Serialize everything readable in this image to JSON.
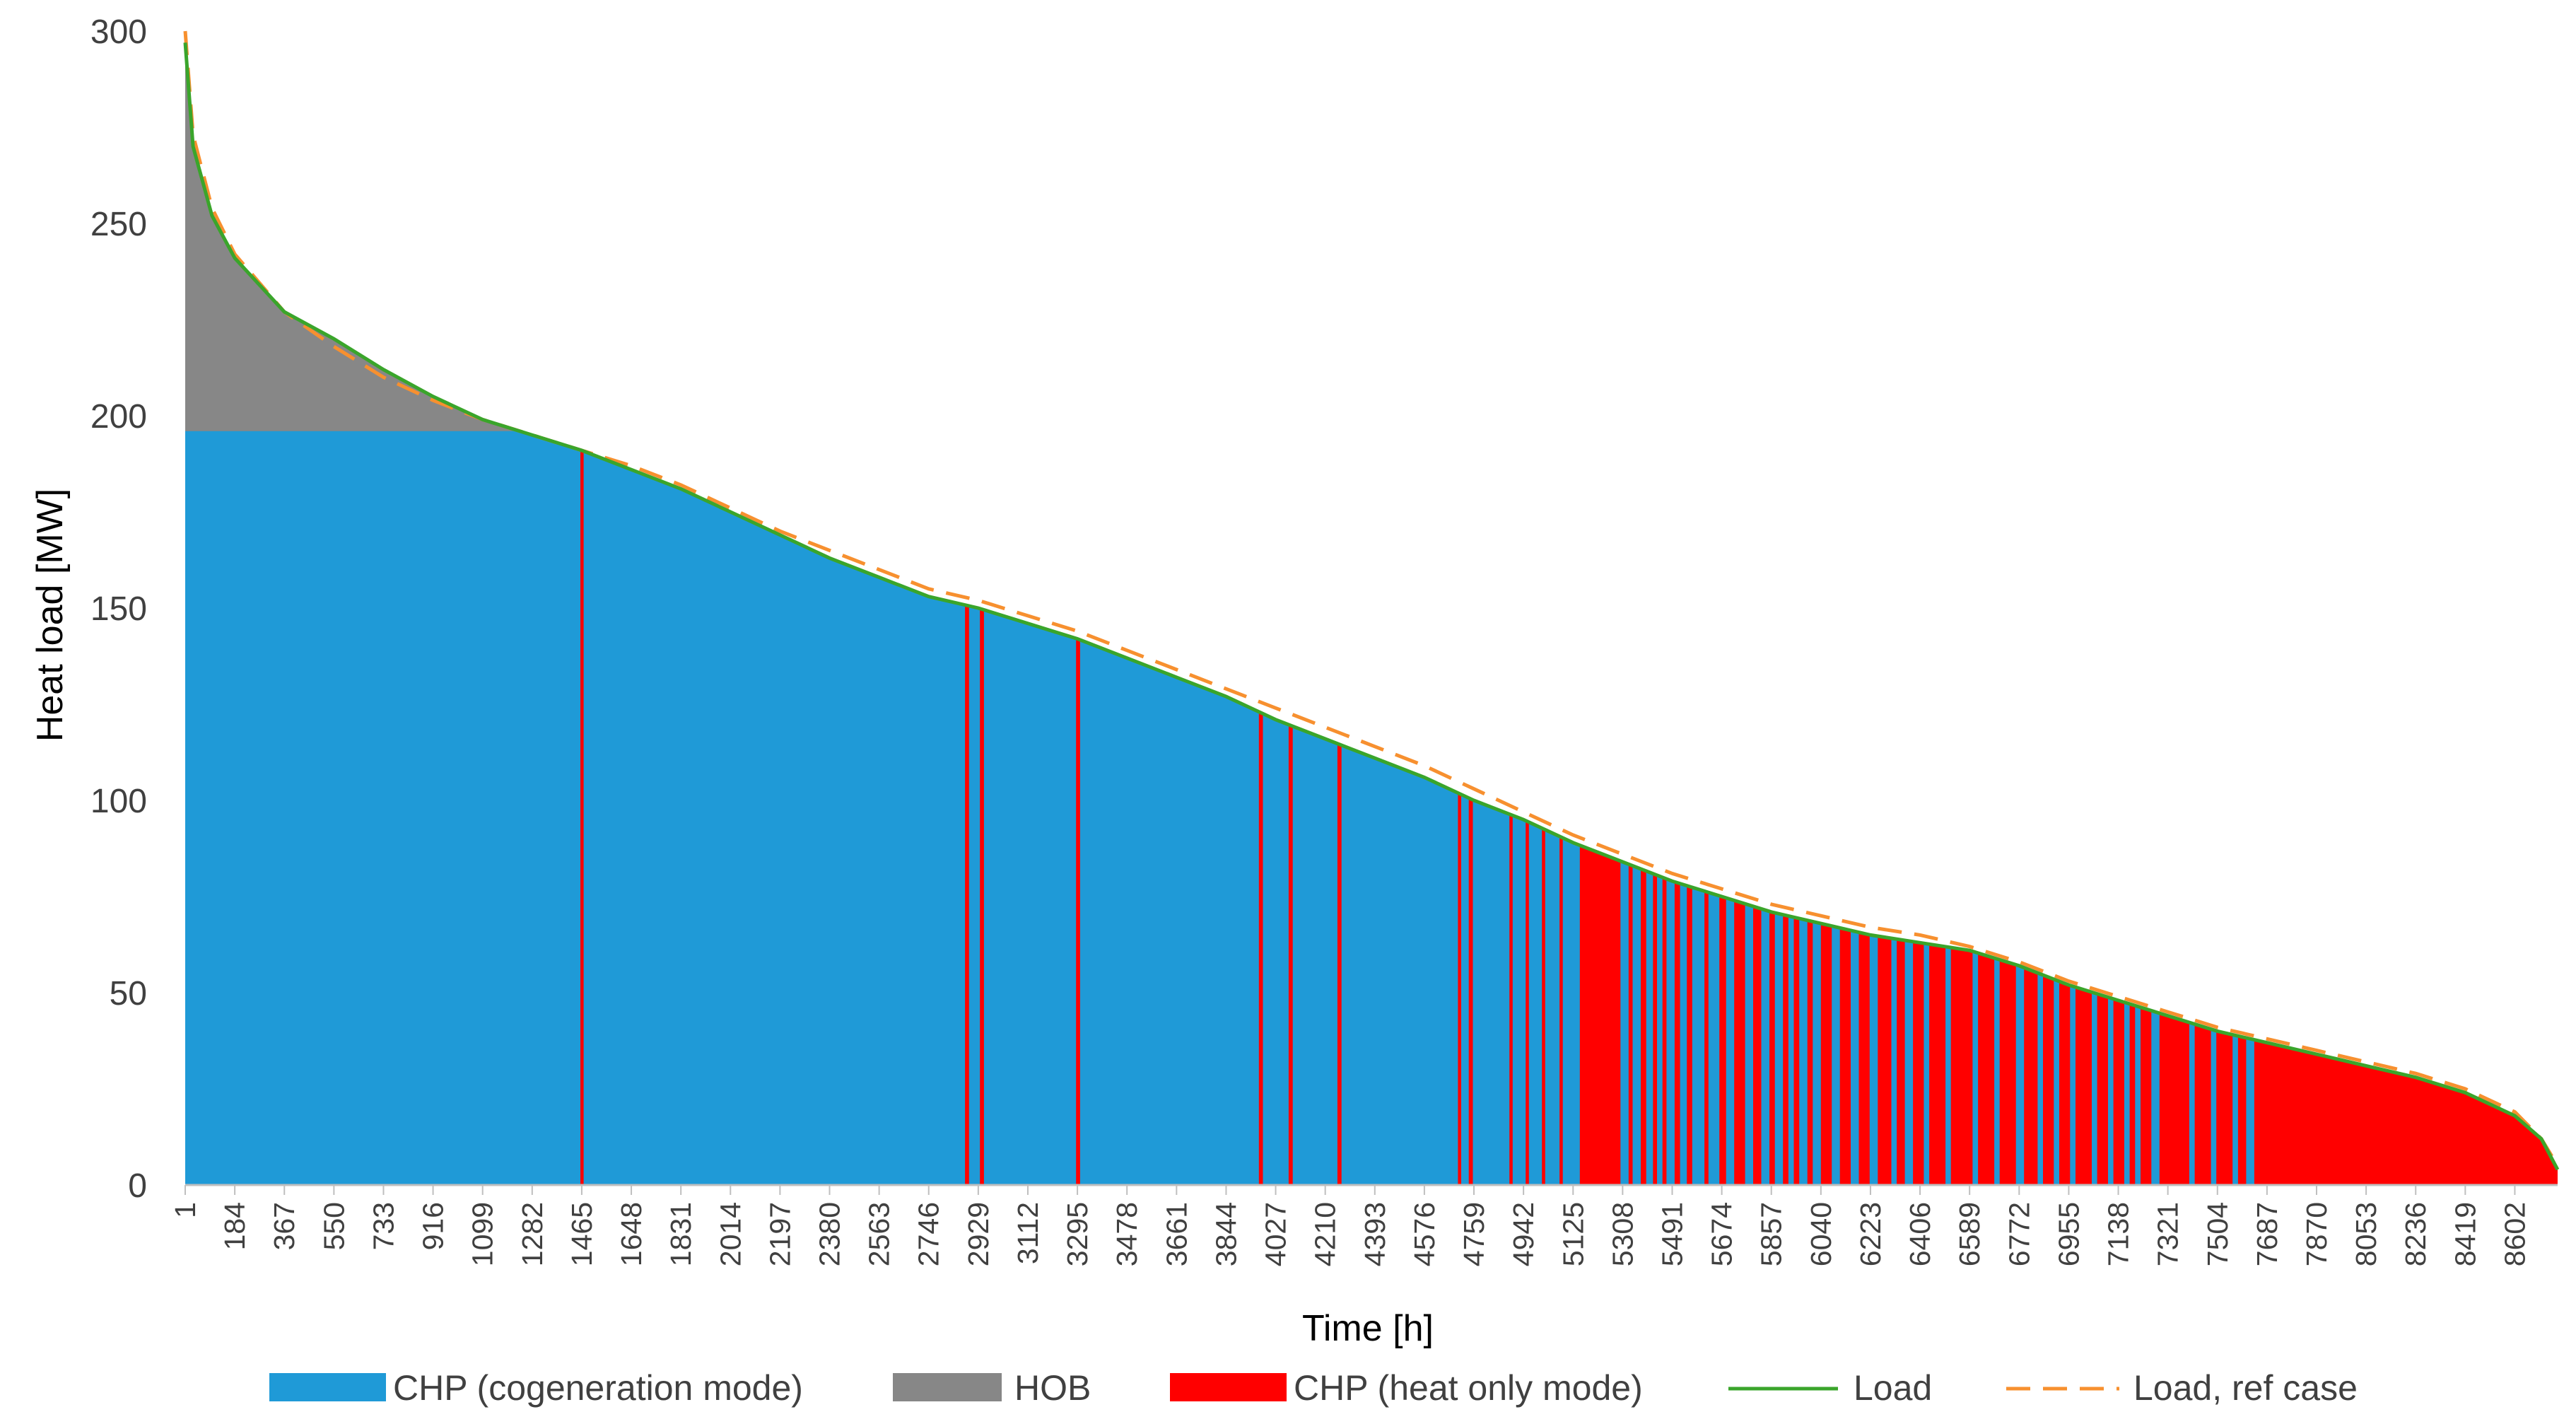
{
  "chart_data": {
    "type": "area",
    "xlabel": "Time [h]",
    "ylabel": "Heat load [MW]",
    "x_range": [
      1,
      8760
    ],
    "ylim": [
      0,
      300
    ],
    "y_ticks": [
      "0",
      "50",
      "100",
      "150",
      "200",
      "250",
      "300"
    ],
    "x_ticks": [
      "1",
      "184",
      "367",
      "550",
      "733",
      "916",
      "1099",
      "1282",
      "1465",
      "1648",
      "1831",
      "2014",
      "2197",
      "2380",
      "2563",
      "2746",
      "2929",
      "3112",
      "3295",
      "3478",
      "3661",
      "3844",
      "4027",
      "4210",
      "4393",
      "4576",
      "4759",
      "4942",
      "5125",
      "5308",
      "5491",
      "5674",
      "5857",
      "6040",
      "6223",
      "6406",
      "6589",
      "6772",
      "6955",
      "7138",
      "7321",
      "7504",
      "7687",
      "7870",
      "8053",
      "8236",
      "8419",
      "8602"
    ],
    "grid": false,
    "legend_position": "bottom",
    "load_curve": {
      "x": [
        1,
        30,
        100,
        184,
        367,
        550,
        733,
        916,
        1099,
        1282,
        1465,
        1648,
        1831,
        2014,
        2197,
        2380,
        2563,
        2746,
        2929,
        3112,
        3295,
        3478,
        3661,
        3844,
        4027,
        4210,
        4393,
        4576,
        4759,
        4942,
        5125,
        5308,
        5491,
        5674,
        5857,
        6040,
        6223,
        6406,
        6589,
        6772,
        6955,
        7138,
        7321,
        7504,
        7687,
        7870,
        8053,
        8236,
        8419,
        8602,
        8700,
        8760
      ],
      "y": [
        297,
        270,
        252,
        241,
        227,
        220,
        212,
        205,
        199,
        195,
        191,
        186,
        181,
        175,
        169,
        163,
        158,
        153,
        150,
        146,
        142,
        137,
        132,
        127,
        121,
        116,
        111,
        106,
        100,
        95,
        89,
        84,
        79,
        75,
        71,
        68,
        65,
        63,
        61,
        57,
        52,
        48,
        44,
        40,
        37,
        34,
        31,
        28,
        24,
        18,
        12,
        4
      ]
    },
    "ref_load_curve": {
      "x": [
        1,
        30,
        100,
        184,
        367,
        550,
        733,
        916,
        1099,
        1282,
        1465,
        1648,
        1831,
        2014,
        2197,
        2380,
        2563,
        2746,
        2929,
        3112,
        3295,
        3478,
        3661,
        3844,
        4027,
        4210,
        4393,
        4576,
        4759,
        4942,
        5125,
        5308,
        5491,
        5674,
        5857,
        6040,
        6223,
        6406,
        6589,
        6772,
        6955,
        7138,
        7321,
        7504,
        7687,
        7870,
        8053,
        8236,
        8419,
        8602,
        8700,
        8760
      ],
      "y": [
        300,
        273,
        254,
        242,
        227,
        218,
        210,
        204,
        199,
        195,
        191,
        187,
        182,
        176,
        170,
        165,
        160,
        155,
        152,
        148,
        144,
        139,
        134,
        129,
        124,
        119,
        114,
        109,
        103,
        97,
        91,
        86,
        81,
        77,
        73,
        70,
        67,
        65,
        62,
        58,
        53,
        49,
        45,
        41,
        38,
        35,
        32,
        29,
        25,
        19,
        12,
        5
      ]
    },
    "chp_cogeneration_cap": 196,
    "heat_only_intervals": [
      [
        1460,
        1472
      ],
      [
        2880,
        2895
      ],
      [
        2935,
        2950
      ],
      [
        3290,
        3305
      ],
      [
        3965,
        3980
      ],
      [
        4075,
        4090
      ],
      [
        4255,
        4270
      ],
      [
        4700,
        4712
      ],
      [
        4740,
        4755
      ],
      [
        4890,
        4902
      ],
      [
        4950,
        4962
      ],
      [
        5010,
        5022
      ],
      [
        5075,
        5087
      ],
      [
        5150,
        5300
      ],
      [
        5330,
        5345
      ],
      [
        5375,
        5395
      ],
      [
        5420,
        5435
      ],
      [
        5455,
        5470
      ],
      [
        5500,
        5520
      ],
      [
        5545,
        5565
      ],
      [
        5610,
        5625
      ],
      [
        5665,
        5690
      ],
      [
        5720,
        5760
      ],
      [
        5790,
        5820
      ],
      [
        5850,
        5870
      ],
      [
        5900,
        5920
      ],
      [
        5940,
        5960
      ],
      [
        5990,
        6010
      ],
      [
        6040,
        6080
      ],
      [
        6110,
        6150
      ],
      [
        6180,
        6220
      ],
      [
        6250,
        6300
      ],
      [
        6320,
        6350
      ],
      [
        6380,
        6420
      ],
      [
        6440,
        6500
      ],
      [
        6520,
        6600
      ],
      [
        6620,
        6680
      ],
      [
        6700,
        6760
      ],
      [
        6790,
        6840
      ],
      [
        6860,
        6900
      ],
      [
        6920,
        6960
      ],
      [
        6980,
        7040
      ],
      [
        7060,
        7100
      ],
      [
        7120,
        7160
      ],
      [
        7180,
        7200
      ],
      [
        7220,
        7260
      ],
      [
        7290,
        7400
      ],
      [
        7420,
        7480
      ],
      [
        7500,
        7560
      ],
      [
        7580,
        7610
      ],
      [
        7640,
        8760
      ]
    ],
    "series": [
      {
        "name": "CHP (cogeneration mode)",
        "color": "#1f9ad7"
      },
      {
        "name": "HOB",
        "color": "#878787"
      },
      {
        "name": "CHP (heat only mode)",
        "color": "#ff0000"
      },
      {
        "name": "Load",
        "color": "#3aa52b"
      },
      {
        "name": "Load, ref case",
        "color": "#f7902f"
      }
    ]
  }
}
